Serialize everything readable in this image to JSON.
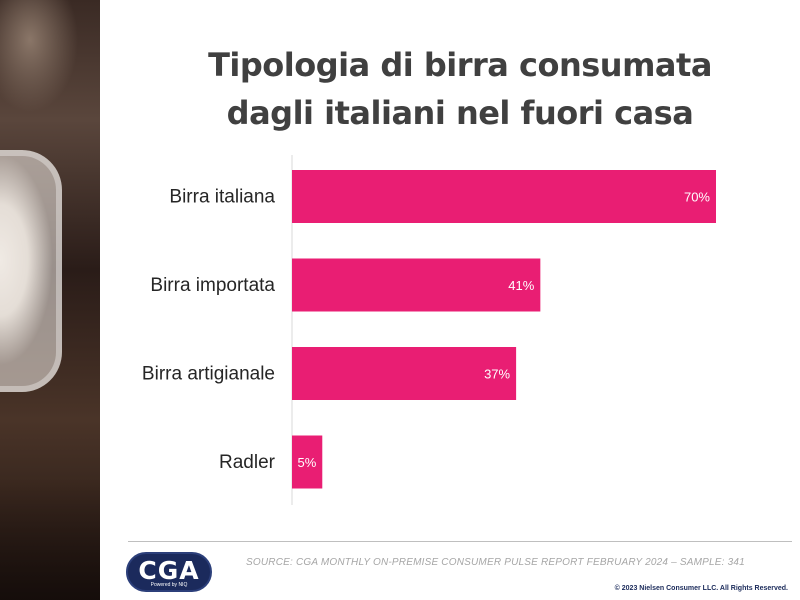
{
  "title_line1": "Tipologia di birra consumata",
  "title_line2": "dagli italiani nel fuori casa",
  "chart_data": {
    "type": "bar",
    "orientation": "horizontal",
    "categories": [
      "Birra italiana",
      "Birra importata",
      "Birra artigianale",
      "Radler"
    ],
    "values": [
      70,
      41,
      37,
      5
    ],
    "value_labels": [
      "70%",
      "41%",
      "37%",
      "5%"
    ],
    "unit": "%",
    "xlim": [
      0,
      70
    ],
    "grid": false,
    "bar_color": "#e91e73"
  },
  "footer": {
    "source": "SOURCE: CGA MONTHLY ON-PREMISE CONSUMER PULSE REPORT FEBRUARY 2024 – SAMPLE: 341",
    "copyright": "© 2023 Nielsen Consumer LLC. All Rights Reserved.",
    "logo_text": "CGA",
    "logo_subtext": "Powered by NIQ"
  },
  "colors": {
    "title": "#404040",
    "logo_bg": "#1b2a5c"
  }
}
